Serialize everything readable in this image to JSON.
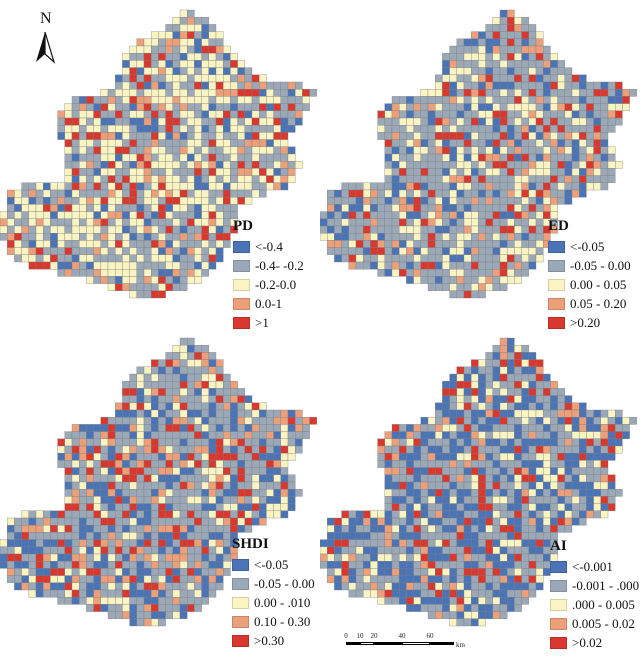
{
  "colors": {
    "class1": "#4a74b6",
    "class2": "#9aa8b8",
    "class3": "#f9f4c2",
    "class4": "#ec9f79",
    "class5": "#d8382e",
    "grid_line": "#7c7c7c"
  },
  "north": {
    "label": "N",
    "icon": "north-arrow-icon"
  },
  "scalebar": {
    "ticks": [
      "0",
      "10",
      "20",
      "40",
      "60"
    ],
    "unit": "km"
  },
  "panels": [
    {
      "index": "PD",
      "title": "PD",
      "legend": [
        "<-0.4",
        "-0.4- -0.2",
        "-0.2-0.0",
        "0.0-1",
        ">1"
      ]
    },
    {
      "index": "ED",
      "title": "ED",
      "legend": [
        "<-0.05",
        "-0.05 - 0.00",
        "0.00 - 0.05",
        "0.05 - 0.20",
        ">0.20"
      ]
    },
    {
      "index": "SHDI",
      "title": "SHDI",
      "legend": [
        "<-0.05",
        "-0.05 - 0.00",
        "0.00 - .010",
        "0.10 - 0.30",
        ">0.30"
      ]
    },
    {
      "index": "AI",
      "title": "AI",
      "legend": [
        "<-0.001",
        "-0.001 - .000",
        ".000 - 0.005",
        "0.005 - 0.02",
        ">0.02"
      ]
    }
  ]
}
